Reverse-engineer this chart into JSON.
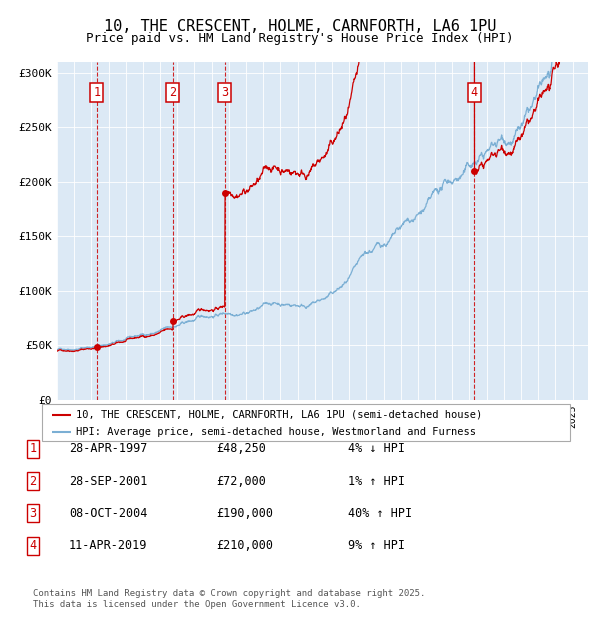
{
  "title": "10, THE CRESCENT, HOLME, CARNFORTH, LA6 1PU",
  "subtitle": "Price paid vs. HM Land Registry's House Price Index (HPI)",
  "title_fontsize": 11,
  "subtitle_fontsize": 9,
  "bg_color": "#dce9f5",
  "red_line_color": "#cc0000",
  "blue_line_color": "#7bafd4",
  "dashed_line_color": "#cc0000",
  "sale_marker_color": "#cc0000",
  "ylim": [
    0,
    310000
  ],
  "yticks": [
    0,
    50000,
    100000,
    150000,
    200000,
    250000,
    300000
  ],
  "ytick_labels": [
    "£0",
    "£50K",
    "£100K",
    "£150K",
    "£200K",
    "£250K",
    "£300K"
  ],
  "sales": [
    {
      "num": 1,
      "date_num": 1997.32,
      "price": 48250,
      "label": "1"
    },
    {
      "num": 2,
      "date_num": 2001.74,
      "price": 72000,
      "label": "2"
    },
    {
      "num": 3,
      "date_num": 2004.77,
      "price": 190000,
      "label": "3"
    },
    {
      "num": 4,
      "date_num": 2019.28,
      "price": 210000,
      "label": "4"
    }
  ],
  "legend_entries": [
    "10, THE CRESCENT, HOLME, CARNFORTH, LA6 1PU (semi-detached house)",
    "HPI: Average price, semi-detached house, Westmorland and Furness"
  ],
  "table_rows": [
    {
      "num": "1",
      "date": "28-APR-1997",
      "price": "£48,250",
      "hpi": "4% ↓ HPI"
    },
    {
      "num": "2",
      "date": "28-SEP-2001",
      "price": "£72,000",
      "hpi": "1% ↑ HPI"
    },
    {
      "num": "3",
      "date": "08-OCT-2004",
      "price": "£190,000",
      "hpi": "40% ↑ HPI"
    },
    {
      "num": "4",
      "date": "11-APR-2019",
      "price": "£210,000",
      "hpi": "9% ↑ HPI"
    }
  ],
  "footer": "Contains HM Land Registry data © Crown copyright and database right 2025.\nThis data is licensed under the Open Government Licence v3.0.",
  "xlim_start": 1995.0,
  "xlim_end": 2025.9
}
